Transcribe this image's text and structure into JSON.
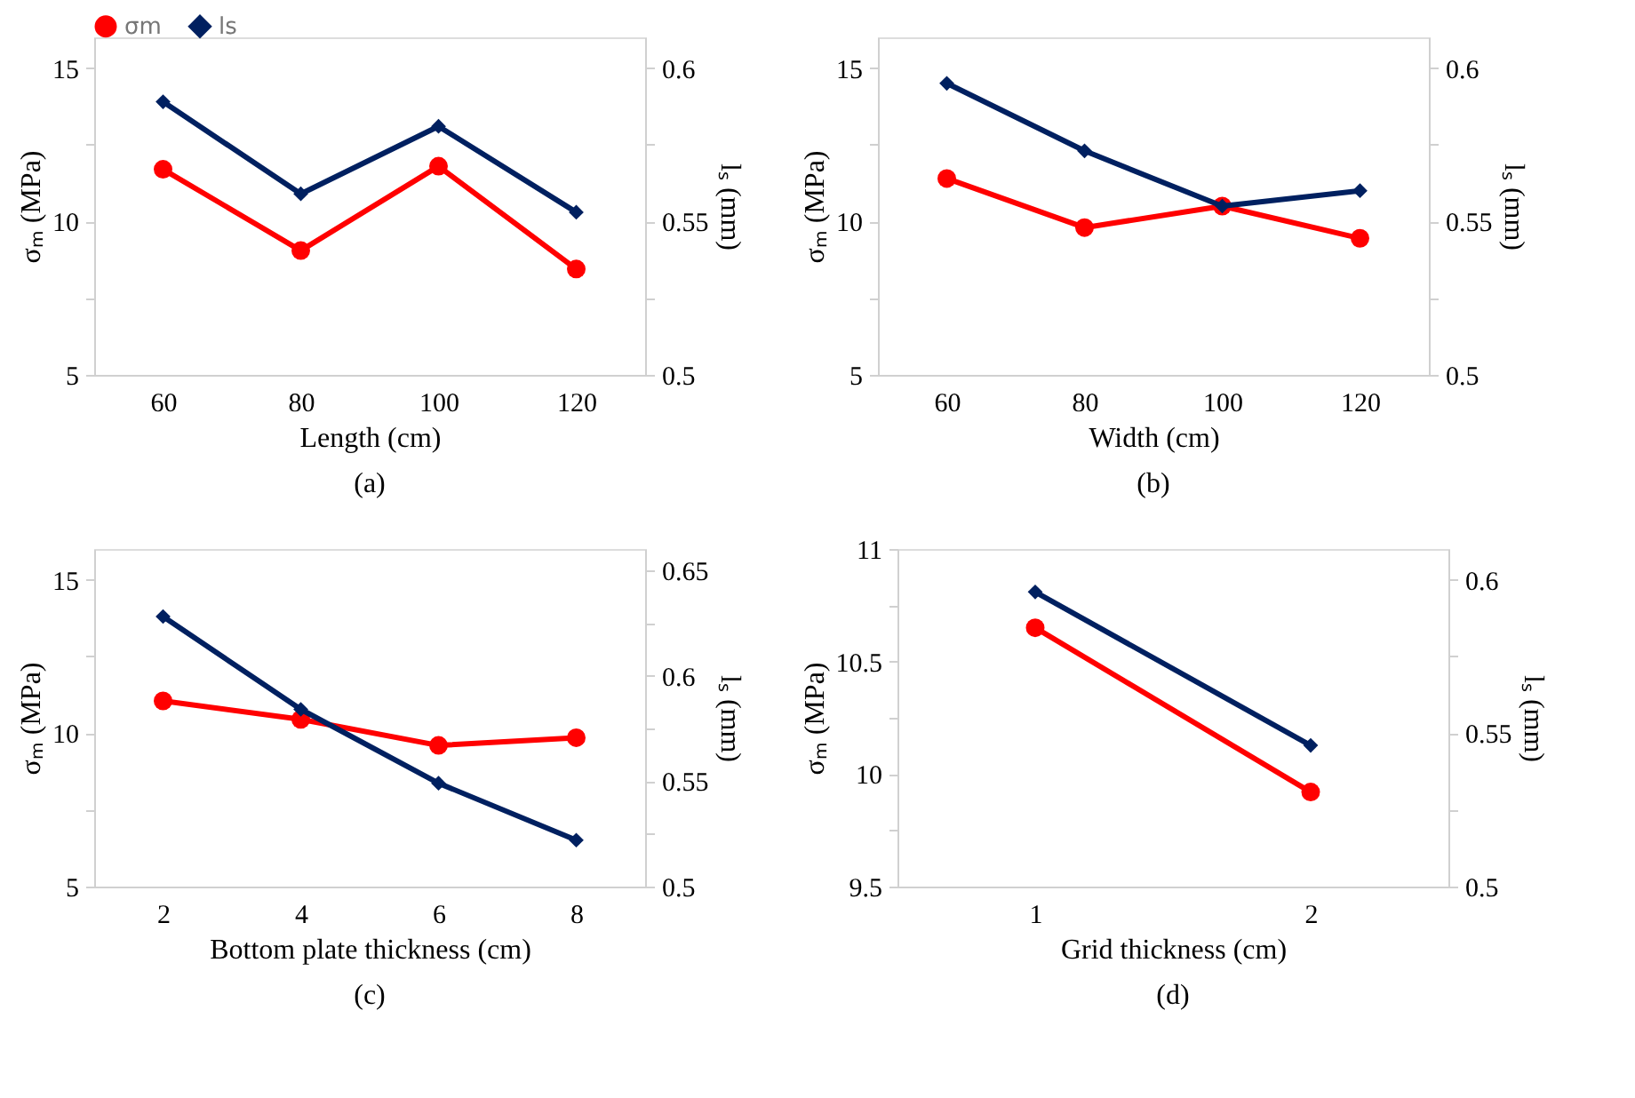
{
  "chart_data": [
    {
      "type": "line",
      "title": "(a)",
      "xlabel": "Length (cm)",
      "ylabel": "σₘ (MPa)",
      "y2label": "lₛ (mm)",
      "categories": [
        "60",
        "80",
        "100",
        "120"
      ],
      "ylim": [
        5,
        16
      ],
      "yticks": [
        5,
        {
          "value": 7.5,
          "label": null
        },
        10,
        {
          "value": 12.5,
          "label": null
        },
        15
      ],
      "y2lim": [
        0.5,
        0.61
      ],
      "y2ticks": [
        0.5,
        {
          "value": 0.525,
          "label": null
        },
        0.55,
        {
          "value": 0.575,
          "label": null
        },
        0.6
      ],
      "legend": "top",
      "grid": false,
      "series": [
        {
          "name": "σm",
          "color": "#ff0000",
          "marker": "circle",
          "values": [
            11.7,
            9.05,
            11.8,
            8.45
          ]
        },
        {
          "name": "ls",
          "color": "#002060",
          "marker": "diamond",
          "axis": "y2",
          "values": [
            0.589,
            0.559,
            0.581,
            0.553
          ]
        }
      ]
    },
    {
      "type": "line",
      "title": "(b)",
      "xlabel": "Width (cm)",
      "ylabel": "σₘ (MPa)",
      "y2label": "lₛ (mm)",
      "categories": [
        "60",
        "80",
        "100",
        "120"
      ],
      "ylim": [
        5,
        16
      ],
      "yticks": [
        5,
        {
          "value": 7.5,
          "label": null
        },
        10,
        {
          "value": 12.5,
          "label": null
        },
        15
      ],
      "y2lim": [
        0.5,
        0.61
      ],
      "y2ticks": [
        0.5,
        {
          "value": 0.525,
          "label": null
        },
        0.55,
        {
          "value": 0.575,
          "label": null
        },
        0.6
      ],
      "legend": "top",
      "grid": false,
      "series": [
        {
          "name": "σm",
          "color": "#ff0000",
          "marker": "circle",
          "values": [
            11.4,
            9.8,
            10.5,
            9.45
          ]
        },
        {
          "name": "ls",
          "color": "#002060",
          "marker": "diamond",
          "axis": "y2",
          "values": [
            0.595,
            0.573,
            0.555,
            0.56
          ]
        }
      ]
    },
    {
      "type": "line",
      "title": "(c)",
      "xlabel": "Bottom plate thickness (cm)",
      "ylabel": "σₘ (MPa)",
      "y2label": "lₛ (mm)",
      "categories": [
        "2",
        "4",
        "6",
        "8"
      ],
      "ylim": [
        5,
        16
      ],
      "yticks": [
        5,
        {
          "value": 7.5,
          "label": null
        },
        10,
        {
          "value": 12.5,
          "label": null
        },
        15
      ],
      "y2lim": [
        0.5,
        0.66
      ],
      "y2ticks": [
        0.5,
        {
          "value": 0.525,
          "label": null
        },
        0.55,
        {
          "value": 0.575,
          "label": null
        },
        0.6,
        {
          "value": 0.625,
          "label": null
        },
        0.65
      ],
      "legend": "top",
      "grid": false,
      "series": [
        {
          "name": "σm",
          "color": "#ff0000",
          "marker": "circle",
          "values": [
            11.05,
            10.45,
            9.6,
            9.85
          ]
        },
        {
          "name": "ls",
          "color": "#002060",
          "marker": "diamond",
          "axis": "y2",
          "values": [
            0.628,
            0.584,
            0.549,
            0.522
          ]
        }
      ]
    },
    {
      "type": "line",
      "title": "(d)",
      "xlabel": "Grid thickness (cm)",
      "ylabel": "σₘ (MPa)",
      "y2label": "lₛ (mm)",
      "categories": [
        "1",
        "2"
      ],
      "ylim": [
        9.5,
        11
      ],
      "yticks": [
        9.5,
        {
          "value": 9.75,
          "label": null
        },
        10,
        {
          "value": 10.25,
          "label": null
        },
        10.5,
        {
          "value": 10.75,
          "label": null
        },
        11
      ],
      "y2lim": [
        0.5,
        0.61
      ],
      "y2ticks": [
        0.5,
        {
          "value": 0.525,
          "label": null
        },
        0.55,
        {
          "value": 0.575,
          "label": null
        },
        0.6
      ],
      "legend": "top",
      "grid": false,
      "series": [
        {
          "name": "σm",
          "color": "#ff0000",
          "marker": "circle",
          "values": [
            10.65,
            9.92
          ]
        },
        {
          "name": "ls",
          "color": "#002060",
          "marker": "diamond",
          "axis": "y2",
          "values": [
            0.596,
            0.546
          ]
        }
      ]
    }
  ]
}
